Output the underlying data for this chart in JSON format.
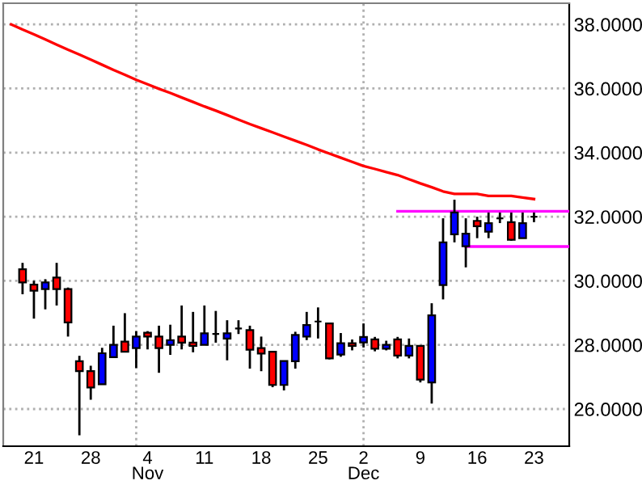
{
  "chart_data": {
    "type": "candlestick",
    "categories": [
      null,
      null,
      "21",
      null,
      null,
      null,
      null,
      "28",
      null,
      null,
      null,
      null,
      "4\nNov",
      null,
      null,
      null,
      null,
      "11",
      null,
      null,
      null,
      null,
      "18",
      null,
      null,
      null,
      null,
      "25",
      null,
      null,
      null,
      "2\nDec",
      null,
      null,
      null,
      null,
      "9",
      null,
      null,
      null,
      null,
      "16",
      null,
      null,
      null,
      null,
      "23",
      null,
      null,
      null
    ],
    "ohlc": [
      null,
      [
        30.36,
        30.56,
        29.58,
        29.95
      ],
      [
        29.88,
        30.0,
        28.82,
        29.69
      ],
      [
        29.74,
        30.05,
        29.11,
        29.95
      ],
      [
        30.1,
        30.56,
        29.23,
        29.74
      ],
      [
        29.74,
        29.79,
        28.26,
        28.7
      ],
      [
        27.49,
        27.66,
        25.18,
        27.18
      ],
      [
        27.18,
        27.35,
        26.29,
        26.67
      ],
      [
        26.77,
        27.91,
        26.77,
        27.74
      ],
      [
        27.62,
        28.6,
        27.62,
        28.0
      ],
      [
        28.1,
        28.99,
        27.79,
        27.79
      ],
      [
        27.9,
        28.43,
        27.28,
        28.26
      ],
      [
        28.38,
        28.43,
        27.86,
        28.26
      ],
      [
        28.26,
        28.6,
        27.13,
        27.9
      ],
      [
        28.0,
        28.63,
        27.69,
        28.15
      ],
      [
        28.26,
        29.23,
        27.86,
        28.07
      ],
      [
        28.07,
        29.03,
        27.77,
        27.97
      ],
      [
        28.0,
        29.23,
        28.0,
        28.36
      ],
      [
        28.34,
        29.06,
        28.07,
        28.34
      ],
      [
        28.2,
        28.77,
        27.52,
        28.36
      ],
      [
        28.51,
        28.77,
        28.34,
        28.51
      ],
      [
        28.46,
        28.6,
        27.26,
        27.85
      ],
      [
        27.9,
        28.26,
        27.18,
        27.73
      ],
      [
        27.79,
        27.79,
        26.68,
        26.75
      ],
      [
        26.75,
        27.5,
        26.58,
        27.5
      ],
      [
        27.49,
        28.41,
        27.26,
        28.31
      ],
      [
        28.26,
        29.03,
        28.15,
        28.62
      ],
      [
        28.73,
        29.17,
        28.2,
        28.73
      ],
      [
        28.67,
        28.67,
        27.55,
        27.58
      ],
      [
        27.7,
        28.37,
        27.63,
        28.05
      ],
      [
        28.05,
        28.17,
        27.83,
        27.97
      ],
      [
        28.08,
        28.67,
        27.92,
        28.25
      ],
      [
        28.17,
        28.25,
        27.8,
        27.88
      ],
      [
        27.88,
        28.13,
        27.83,
        28.0
      ],
      [
        28.17,
        28.25,
        27.58,
        27.67
      ],
      [
        27.67,
        28.2,
        27.58,
        27.97
      ],
      [
        27.97,
        27.97,
        26.83,
        26.92
      ],
      [
        26.83,
        29.3,
        26.17,
        28.92
      ],
      [
        29.87,
        31.95,
        29.42,
        31.2
      ],
      [
        31.45,
        32.53,
        31.2,
        32.13
      ],
      [
        31.08,
        31.95,
        30.42,
        31.47
      ],
      [
        31.87,
        32.0,
        31.33,
        31.7
      ],
      [
        31.53,
        32.13,
        31.33,
        31.8
      ],
      [
        31.95,
        32.13,
        31.8,
        31.95
      ],
      [
        31.83,
        32.13,
        31.25,
        31.28
      ],
      [
        31.33,
        32.13,
        31.33,
        31.8
      ],
      [
        32.0,
        32.13,
        31.83,
        32.0
      ],
      null,
      null,
      null
    ],
    "colors": [
      null,
      "#ff0000",
      "#ff0000",
      "#0000ff",
      "#ff0000",
      "#ff0000",
      "#ff0000",
      "#ff0000",
      "#0000ff",
      "#0000ff",
      "#ff0000",
      "#0000ff",
      "#ff0000",
      "#ff0000",
      "#0000ff",
      "#ff0000",
      "#ff0000",
      "#0000ff",
      "#000000",
      "#0000ff",
      "#000000",
      "#ff0000",
      "#ff0000",
      "#ff0000",
      "#0000ff",
      "#0000ff",
      "#0000ff",
      "#000000",
      "#ff0000",
      "#0000ff",
      "#ff0000",
      "#0000ff",
      "#ff0000",
      "#0000ff",
      "#ff0000",
      "#0000ff",
      "#ff0000",
      "#0000ff",
      "#0000ff",
      "#0000ff",
      "#0000ff",
      "#ff0000",
      "#0000ff",
      "#000000",
      "#ff0000",
      "#0000ff",
      "#000000",
      null,
      null,
      null
    ],
    "series": [
      {
        "type": "line",
        "color": "#ff0000",
        "values": [
          38.0,
          37.84,
          37.69,
          37.53,
          37.37,
          37.21,
          37.06,
          36.9,
          36.74,
          36.58,
          36.43,
          36.27,
          36.13,
          35.99,
          35.86,
          35.72,
          35.58,
          35.44,
          35.31,
          35.17,
          35.03,
          34.89,
          34.76,
          34.63,
          34.5,
          34.37,
          34.24,
          34.1,
          33.97,
          33.84,
          33.71,
          33.58,
          33.49,
          33.39,
          33.3,
          33.17,
          33.04,
          32.92,
          32.79,
          32.71,
          32.71,
          32.71,
          32.65,
          32.65,
          32.65,
          32.6,
          32.55,
          null,
          null,
          null
        ]
      },
      {
        "type": "line",
        "color": "#ff00ff",
        "values": [
          null,
          null,
          null,
          null,
          null,
          null,
          null,
          null,
          null,
          null,
          null,
          null,
          null,
          null,
          null,
          null,
          null,
          null,
          null,
          null,
          null,
          null,
          null,
          null,
          null,
          null,
          null,
          null,
          null,
          null,
          null,
          null,
          null,
          null,
          32.17,
          32.17,
          32.17,
          32.17,
          32.17,
          32.17,
          32.17,
          32.17,
          32.17,
          32.17,
          32.17,
          32.17,
          32.17,
          32.17,
          32.17,
          32.17
        ]
      },
      {
        "type": "line",
        "color": "#ff00ff",
        "values": [
          null,
          null,
          null,
          null,
          null,
          null,
          null,
          null,
          null,
          null,
          null,
          null,
          null,
          null,
          null,
          null,
          null,
          null,
          null,
          null,
          null,
          null,
          null,
          null,
          null,
          null,
          null,
          null,
          null,
          null,
          null,
          null,
          null,
          null,
          null,
          null,
          null,
          null,
          null,
          null,
          31.07,
          31.07,
          31.07,
          31.07,
          31.07,
          31.07,
          31.07,
          31.07,
          31.07,
          31.07
        ]
      }
    ],
    "ylim": [
      24.84,
      38.66
    ],
    "yticks": [
      {
        "value": 26,
        "label": "26.0000"
      },
      {
        "value": 28,
        "label": "28.0000"
      },
      {
        "value": 30,
        "label": "30.0000"
      },
      {
        "value": 32,
        "label": "32.0000"
      },
      {
        "value": 34,
        "label": "34.0000"
      },
      {
        "value": 36,
        "label": "36.0000"
      },
      {
        "value": 38,
        "label": "38.0000"
      }
    ],
    "grid": "y",
    "legend": false
  }
}
